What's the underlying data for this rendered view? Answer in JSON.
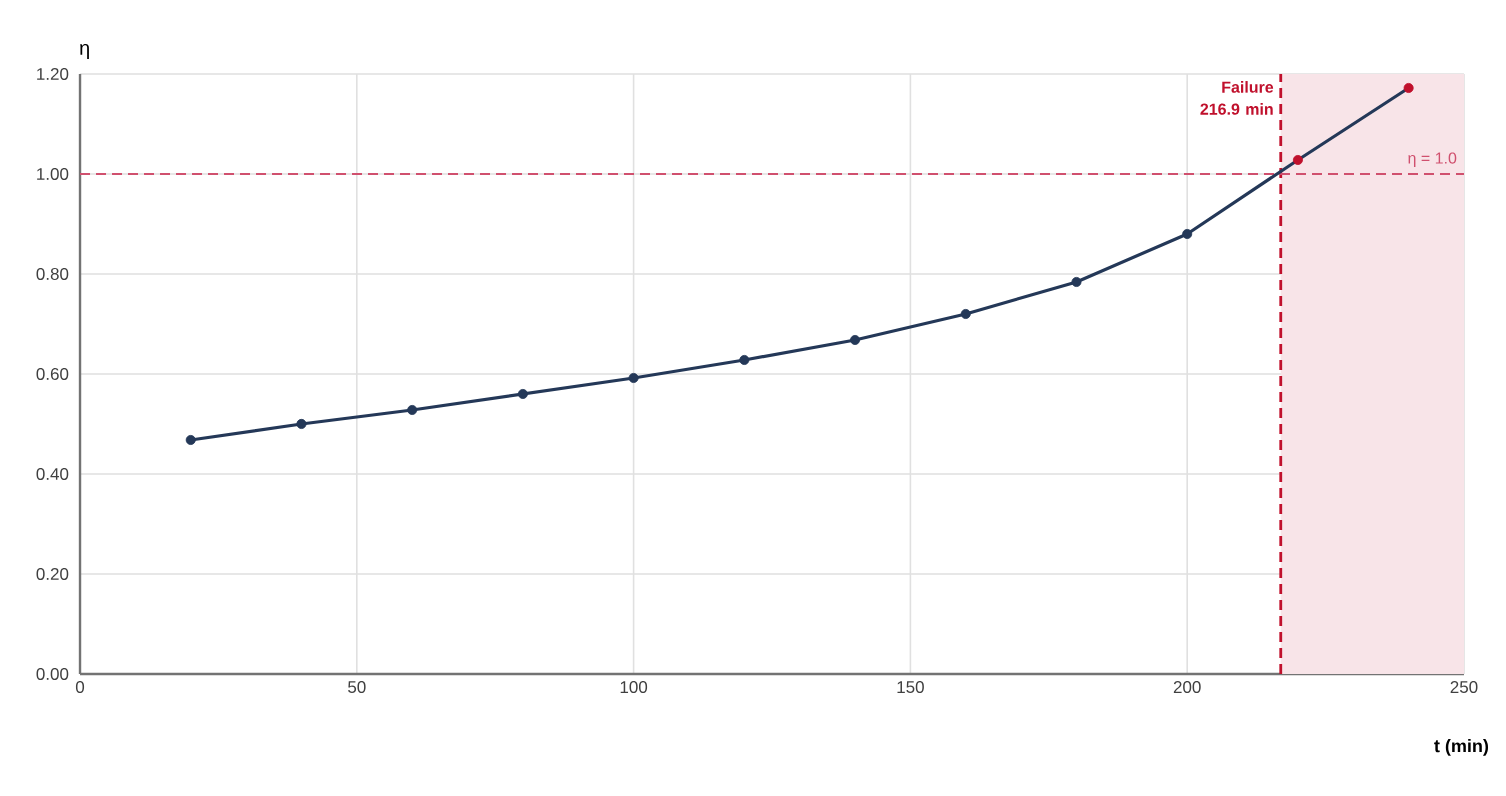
{
  "chart_data": {
    "type": "line",
    "xlabel": "t (min)",
    "ylabel": "η",
    "x": [
      20,
      40,
      60,
      80,
      100,
      120,
      140,
      160,
      180,
      200,
      220,
      240
    ],
    "series": [
      {
        "color": "#243858",
        "colors": [
          "#243858",
          "#243858",
          "#243858",
          "#243858",
          "#243858",
          "#243858",
          "#243858",
          "#243858",
          "#243858",
          "#243858",
          "#c0102c",
          "#c0102c"
        ],
        "values": [
          0.468,
          0.5,
          0.528,
          0.56,
          0.592,
          0.628,
          0.668,
          0.72,
          0.784,
          0.88,
          1.028,
          1.172
        ]
      }
    ],
    "xlim": [
      0,
      250
    ],
    "xticks": [
      0,
      50,
      100,
      150,
      200,
      250
    ],
    "ylim": [
      0,
      1.2
    ],
    "yticks": [
      {
        "value": 0,
        "label": "0.00"
      },
      {
        "value": 0.2,
        "label": "0.20"
      },
      {
        "value": 0.4,
        "label": "0.40"
      },
      {
        "value": 0.6,
        "label": "0.60"
      },
      {
        "value": 0.8,
        "label": "0.80"
      },
      {
        "value": 1.0,
        "label": "1.00"
      },
      {
        "value": 1.2,
        "label": "1.20"
      }
    ],
    "bands": [
      {
        "axis": "x",
        "from": 216.9,
        "to": 250,
        "color": "#f8e4e8"
      }
    ],
    "ref_lines": [
      {
        "axis": "x",
        "value": 216.9,
        "label": "Failure 216.9 min",
        "color": "#c0102c",
        "line_style": "dashed"
      },
      {
        "axis": "y",
        "value": 1.0,
        "label": "η = 1.0",
        "color": "#d0506e",
        "line_style": "dashed"
      }
    ],
    "grid": true,
    "marker": "circle",
    "line_style": "solid"
  }
}
